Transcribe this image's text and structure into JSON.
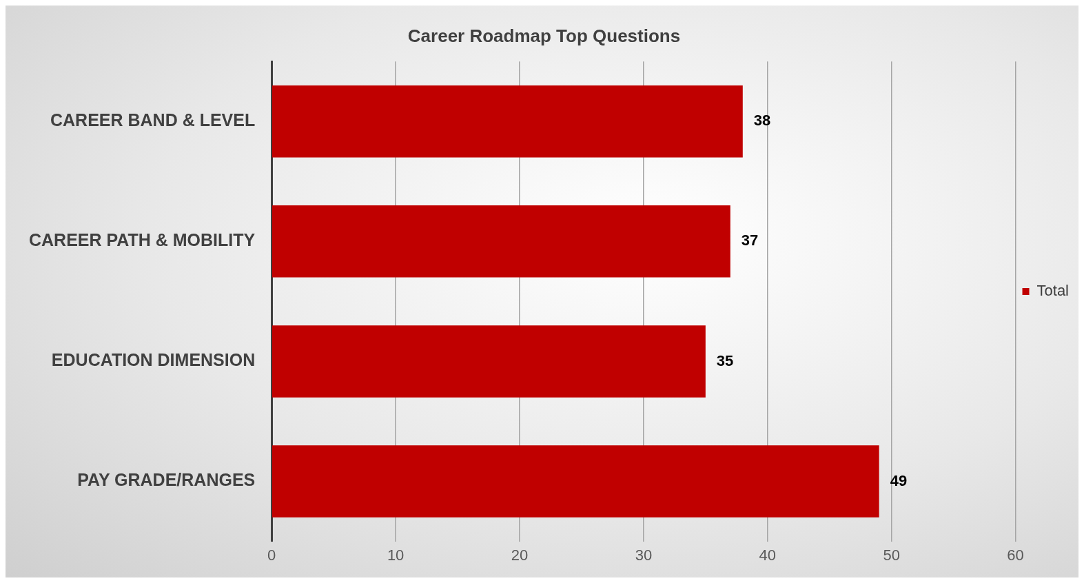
{
  "chart_data": {
    "type": "bar",
    "orientation": "horizontal",
    "title": "Career Roadmap Top Questions",
    "categories": [
      "CAREER BAND & LEVEL",
      "CAREER PATH & MOBILITY",
      "EDUCATION DIMENSION",
      "PAY GRADE/RANGES"
    ],
    "series": [
      {
        "name": "Total",
        "color": "#c00000",
        "values": [
          38,
          37,
          35,
          49
        ]
      }
    ],
    "xlim": [
      0,
      60
    ],
    "xticks": [
      0,
      10,
      20,
      30,
      40,
      50,
      60
    ],
    "grid": "x",
    "legend": "right",
    "data_labels": true
  }
}
